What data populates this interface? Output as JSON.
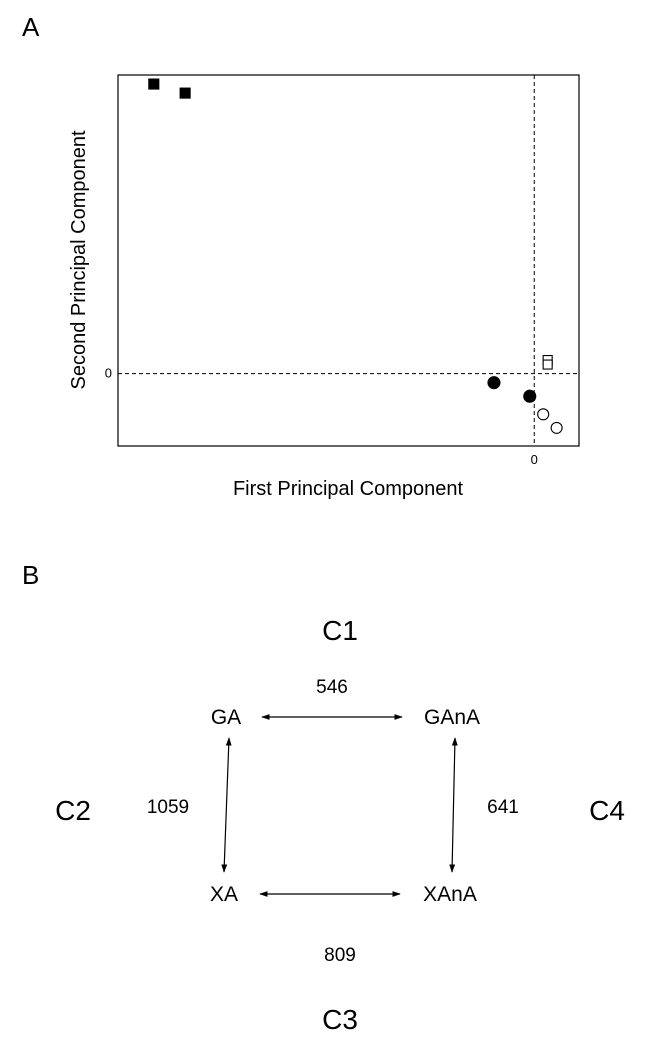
{
  "panel_a_label": "A",
  "panel_b_label": "B",
  "chart_data": {
    "type": "scatter",
    "title": "",
    "xlabel": "First Principal Component",
    "ylabel": "Second Principal Component",
    "x_ticks": [
      "0"
    ],
    "y_ticks": [
      "0"
    ],
    "xlim": [
      -9.3,
      1.0
    ],
    "ylim": [
      -1.6,
      6.6
    ],
    "grid": false,
    "reference_lines": {
      "x": 0,
      "y": 0
    },
    "series": [
      {
        "marker": "filled-square",
        "points": [
          [
            -8.5,
            6.4
          ],
          [
            -7.8,
            6.2
          ]
        ]
      },
      {
        "marker": "open-square",
        "points": [
          [
            0.3,
            0.3
          ],
          [
            0.3,
            0.2
          ]
        ]
      },
      {
        "marker": "filled-circle",
        "points": [
          [
            -0.9,
            -0.2
          ],
          [
            -0.1,
            -0.5
          ]
        ]
      },
      {
        "marker": "open-circle",
        "points": [
          [
            0.2,
            -0.9
          ],
          [
            0.5,
            -1.2
          ]
        ]
      }
    ]
  },
  "diagram": {
    "clusters": {
      "top": "C1",
      "left": "C2",
      "bottom": "C3",
      "right": "C4"
    },
    "nodes": {
      "top_left": "GA",
      "top_right": "GAnA",
      "bottom_left": "XA",
      "bottom_right": "XAnA"
    },
    "edges": {
      "top": "546",
      "left": "1059",
      "right": "641",
      "bottom": "809"
    }
  }
}
